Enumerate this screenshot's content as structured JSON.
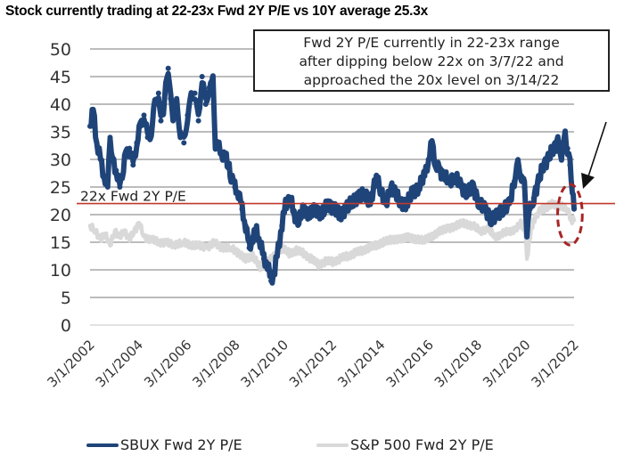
{
  "title": "Stock currently trading at 22-23x Fwd 2Y P/E vs 10Y average 25.3x",
  "annotation": {
    "lines": [
      "Fwd 2Y P/E currently in 22-23x range",
      "after dipping below 22x on 3/7/22 and",
      "approached the 20x level on 3/14/22"
    ]
  },
  "colors": {
    "sbux": "#1f4479",
    "sp500": "#d9d9d9",
    "reference": "#c0392b",
    "highlight": "#a82525",
    "grid": "#a6a6a6"
  },
  "chart_data": {
    "type": "line",
    "title": "Stock currently trading at 22-23x Fwd 2Y P/E vs 10Y average 25.3x",
    "xlabel": "",
    "ylabel": "",
    "ylim": [
      0,
      50
    ],
    "yticks": [
      0,
      5,
      10,
      15,
      20,
      25,
      30,
      35,
      40,
      45,
      50
    ],
    "xlim": [
      2002.17,
      2022.17
    ],
    "xtick_labels": [
      "3/1/2002",
      "3/1/2004",
      "3/1/2006",
      "3/1/2008",
      "3/1/2010",
      "3/1/2012",
      "3/1/2014",
      "3/1/2016",
      "3/1/2018",
      "3/1/2020",
      "3/1/2022"
    ],
    "grid": true,
    "legend_position": "bottom",
    "reference_line": {
      "value": 22,
      "label": "22x Fwd 2Y P/E"
    },
    "highlight": {
      "shape": "dashed-ellipse",
      "x_range": [
        2021.6,
        2022.4
      ],
      "y_range": [
        14.5,
        25.5
      ]
    },
    "series": [
      {
        "name": "SBUX Fwd 2Y P/E",
        "x": [
          2002.17,
          2002.3,
          2002.45,
          2002.6,
          2002.75,
          2002.9,
          2003.0,
          2003.1,
          2003.25,
          2003.4,
          2003.5,
          2003.65,
          2003.8,
          2003.95,
          2004.1,
          2004.25,
          2004.4,
          2004.55,
          2004.7,
          2004.85,
          2005.0,
          2005.1,
          2005.2,
          2005.3,
          2005.4,
          2005.5,
          2005.6,
          2005.75,
          2005.9,
          2006.05,
          2006.2,
          2006.35,
          2006.5,
          2006.65,
          2006.8,
          2006.95,
          2007.1,
          2007.25,
          2007.35,
          2007.5,
          2007.65,
          2007.8,
          2008.0,
          2008.15,
          2008.3,
          2008.45,
          2008.6,
          2008.75,
          2008.9,
          2009.05,
          2009.2,
          2009.35,
          2009.5,
          2009.65,
          2009.8,
          2009.95,
          2010.1,
          2010.25,
          2010.45,
          2010.6,
          2010.8,
          2011.0,
          2011.25,
          2011.5,
          2011.75,
          2012.0,
          2012.25,
          2012.5,
          2012.75,
          2013.0,
          2013.25,
          2013.5,
          2013.75,
          2014.0,
          2014.2,
          2014.4,
          2014.6,
          2014.8,
          2015.0,
          2015.25,
          2015.5,
          2015.75,
          2016.0,
          2016.15,
          2016.3,
          2016.45,
          2016.6,
          2016.8,
          2017.0,
          2017.25,
          2017.5,
          2017.75,
          2018.0,
          2018.25,
          2018.5,
          2018.75,
          2019.0,
          2019.25,
          2019.5,
          2019.7,
          2019.85,
          2020.0,
          2020.12,
          2020.22,
          2020.35,
          2020.5,
          2020.7,
          2020.9,
          2021.1,
          2021.3,
          2021.5,
          2021.65,
          2021.8,
          2021.9,
          2022.0,
          2022.1,
          2022.17
        ],
        "values": [
          36,
          39,
          33,
          30,
          27,
          25,
          34,
          30,
          28,
          25,
          27,
          31,
          32,
          29,
          33,
          36,
          38,
          34,
          35,
          40,
          42,
          37,
          39,
          43,
          46.5,
          41,
          38,
          40,
          35,
          33,
          38,
          41,
          42,
          37,
          45,
          40,
          43,
          44,
          33,
          32,
          31,
          30,
          27,
          25,
          24,
          21,
          18,
          14,
          16,
          17,
          15,
          12,
          11,
          8,
          10,
          14,
          18,
          22,
          23,
          20,
          19,
          21,
          20,
          21,
          20,
          22,
          21,
          20,
          21,
          22.5,
          23,
          24,
          22,
          27,
          24,
          22,
          25,
          24,
          22,
          22,
          24,
          25,
          27,
          30,
          33,
          29,
          28,
          27,
          26,
          27,
          25,
          24,
          25,
          22,
          21,
          19,
          20,
          21,
          22,
          26,
          29,
          27,
          25,
          17,
          21,
          23,
          26,
          29,
          30,
          32,
          33,
          31,
          34,
          32,
          29,
          25,
          21
        ]
      },
      {
        "name": "S&P 500 Fwd 2Y P/E",
        "x": [
          2002.17,
          2002.4,
          2002.6,
          2002.8,
          2003.0,
          2003.2,
          2003.4,
          2003.6,
          2003.8,
          2004.0,
          2004.2,
          2004.4,
          2004.7,
          2005.0,
          2005.3,
          2005.6,
          2006.0,
          2006.3,
          2006.6,
          2007.0,
          2007.3,
          2007.6,
          2008.0,
          2008.3,
          2008.6,
          2008.9,
          2009.2,
          2009.5,
          2009.8,
          2010.1,
          2010.4,
          2010.7,
          2011.0,
          2011.3,
          2011.6,
          2011.9,
          2012.2,
          2012.5,
          2012.8,
          2013.1,
          2013.4,
          2013.7,
          2014.0,
          2014.3,
          2014.6,
          2015.0,
          2015.3,
          2015.6,
          2016.0,
          2016.3,
          2016.6,
          2017.0,
          2017.3,
          2017.6,
          2018.0,
          2018.3,
          2018.6,
          2018.9,
          2019.2,
          2019.5,
          2019.8,
          2020.0,
          2020.15,
          2020.22,
          2020.35,
          2020.5,
          2020.7,
          2020.9,
          2021.1,
          2021.3,
          2021.5,
          2021.7,
          2021.9,
          2022.05,
          2022.17
        ],
        "values": [
          18,
          17,
          15.5,
          16.5,
          14.5,
          17,
          16,
          17,
          15.5,
          17,
          18.5,
          16,
          15.5,
          15,
          15,
          14.5,
          15,
          14.5,
          14.5,
          14,
          15,
          14,
          14,
          13,
          12,
          12.5,
          10.5,
          11.5,
          12.5,
          14,
          13,
          13.5,
          13,
          12,
          11,
          11.5,
          11.5,
          12,
          12.5,
          13,
          13.5,
          14,
          14.5,
          15,
          15.5,
          15.5,
          16,
          15.5,
          15.5,
          16,
          17,
          17.5,
          18,
          18.5,
          18,
          17,
          17.5,
          16,
          16.5,
          17,
          17.5,
          18.5,
          17,
          12,
          16,
          19,
          20.5,
          21,
          21.5,
          22,
          21.5,
          21.5,
          21,
          19,
          19
        ]
      }
    ]
  }
}
